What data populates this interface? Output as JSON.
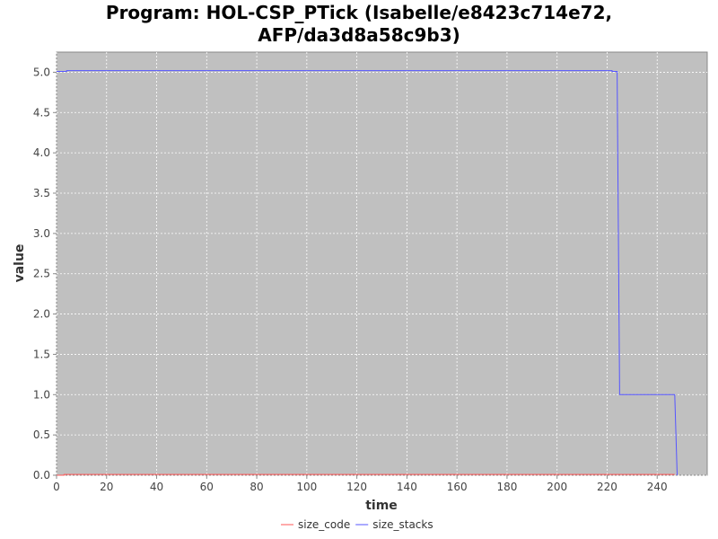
{
  "chart_data": {
    "type": "line",
    "title_lines": [
      "Program: HOL-CSP_PTick (Isabelle/e8423c714e72,",
      "AFP/da3d8a58c9b3)"
    ],
    "xlabel": "time",
    "ylabel": "value",
    "xlim": [
      0,
      260
    ],
    "ylim": [
      0,
      5.25
    ],
    "x_ticks": [
      0,
      20,
      40,
      60,
      80,
      100,
      120,
      140,
      160,
      180,
      200,
      220,
      240
    ],
    "y_ticks": [
      "0.0",
      "0.5",
      "1.0",
      "1.5",
      "2.0",
      "2.5",
      "3.0",
      "3.5",
      "4.0",
      "4.5",
      "5.0"
    ],
    "grid": true,
    "legend_position": "bottom",
    "series": [
      {
        "name": "size_code",
        "color": "#ff5555",
        "x": [
          0,
          3,
          3,
          247
        ],
        "y": [
          0.0,
          0.0,
          0.01,
          0.01
        ]
      },
      {
        "name": "size_stacks",
        "color": "#5555ff",
        "x": [
          0,
          4,
          4,
          222,
          222,
          224,
          225,
          247,
          248
        ],
        "y": [
          5.01,
          5.01,
          5.02,
          5.02,
          5.01,
          5.01,
          1.0,
          1.0,
          0.0
        ]
      }
    ]
  }
}
